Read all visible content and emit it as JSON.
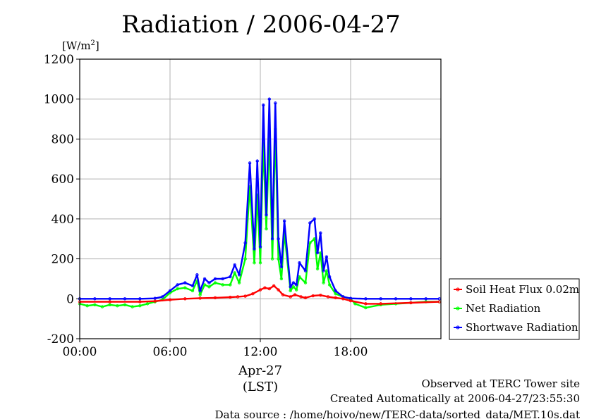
{
  "chart_data": {
    "type": "line",
    "title": "Radiation / 2006-04-27",
    "ylabel": "[W/m2]",
    "ylabel_base": "[W/m",
    "ylabel_sup": "2",
    "ylabel_close": "]",
    "xlabel_date": "Apr-27",
    "xlabel_zone": "(LST)",
    "x_unit": "hours",
    "xlim": [
      0,
      24
    ],
    "ylim": [
      -200,
      1200
    ],
    "grid": true,
    "x_ticks": [
      0,
      6,
      12,
      18
    ],
    "x_tick_labels": [
      "00:00",
      "06:00",
      "12:00",
      "18:00"
    ],
    "y_ticks": [
      -200,
      0,
      200,
      400,
      600,
      800,
      1000,
      1200
    ],
    "y_tick_labels": [
      "-200",
      "0",
      "200",
      "400",
      "600",
      "800",
      "1000",
      "1200"
    ],
    "legend_position": "right",
    "series": [
      {
        "name": "Soil Heat Flux 0.02m",
        "color": "#ff0000",
        "x": [
          0,
          2,
          4,
          5,
          6,
          7,
          8,
          9,
          10,
          10.5,
          11,
          11.5,
          12,
          12.3,
          12.6,
          12.9,
          13.2,
          13.5,
          14,
          14.3,
          14.7,
          15,
          15.5,
          16,
          16.5,
          17,
          17.5,
          18,
          19,
          20,
          22,
          23.9
        ],
        "values": [
          -15,
          -15,
          -15,
          -12,
          -5,
          0,
          3,
          5,
          8,
          10,
          13,
          25,
          45,
          55,
          50,
          65,
          45,
          20,
          10,
          20,
          10,
          5,
          15,
          18,
          10,
          5,
          0,
          -10,
          -25,
          -25,
          -20,
          -15
        ]
      },
      {
        "name": "Net Radiation",
        "color": "#00ff00",
        "x": [
          0,
          0.5,
          1,
          1.5,
          2,
          2.5,
          3,
          3.5,
          4,
          4.5,
          5,
          5.5,
          6,
          6.5,
          7,
          7.5,
          7.8,
          8,
          8.3,
          8.6,
          9,
          9.5,
          10,
          10.3,
          10.6,
          11,
          11.3,
          11.6,
          11.8,
          12,
          12.2,
          12.4,
          12.6,
          12.8,
          13,
          13.2,
          13.4,
          13.6,
          14,
          14.2,
          14.4,
          14.6,
          15,
          15.3,
          15.6,
          15.8,
          16,
          16.2,
          16.4,
          16.6,
          17,
          17.5,
          18,
          18.3,
          19,
          20,
          21,
          22,
          23,
          23.9
        ],
        "values": [
          -25,
          -35,
          -30,
          -40,
          -30,
          -35,
          -30,
          -40,
          -35,
          -25,
          -15,
          -5,
          30,
          50,
          55,
          40,
          90,
          20,
          70,
          60,
          80,
          70,
          70,
          130,
          80,
          200,
          560,
          180,
          520,
          180,
          780,
          350,
          820,
          200,
          850,
          200,
          100,
          330,
          40,
          60,
          45,
          110,
          80,
          280,
          300,
          150,
          230,
          80,
          140,
          70,
          25,
          10,
          0,
          -25,
          -45,
          -30,
          -25,
          -20,
          -15,
          -15
        ]
      },
      {
        "name": "Shortwave Radiation",
        "color": "#0000ff",
        "x": [
          0,
          1,
          2,
          3,
          4,
          5,
          5.5,
          6,
          6.5,
          7,
          7.5,
          7.8,
          8,
          8.3,
          8.6,
          9,
          9.5,
          10,
          10.3,
          10.6,
          11,
          11.3,
          11.6,
          11.8,
          12,
          12.2,
          12.4,
          12.6,
          12.8,
          13,
          13.2,
          13.4,
          13.6,
          14,
          14.2,
          14.4,
          14.6,
          15,
          15.3,
          15.6,
          15.8,
          16,
          16.2,
          16.4,
          16.6,
          17,
          17.5,
          18,
          19,
          20,
          21,
          22,
          23,
          23.9
        ],
        "values": [
          0,
          0,
          0,
          0,
          0,
          2,
          10,
          40,
          70,
          80,
          65,
          120,
          40,
          100,
          80,
          100,
          100,
          110,
          170,
          120,
          280,
          680,
          250,
          690,
          260,
          970,
          420,
          1000,
          300,
          980,
          300,
          160,
          390,
          60,
          80,
          70,
          180,
          140,
          380,
          400,
          230,
          330,
          140,
          210,
          110,
          40,
          10,
          2,
          0,
          0,
          0,
          0,
          0,
          0
        ]
      }
    ]
  },
  "footer": {
    "observed": "Observed at TERC Tower site",
    "created": "Created Automatically at 2006-04-27/23:55:30",
    "source": "Data source : /home/hoivo/new/TERC-data/sorted_data/MET.10s.dat"
  }
}
